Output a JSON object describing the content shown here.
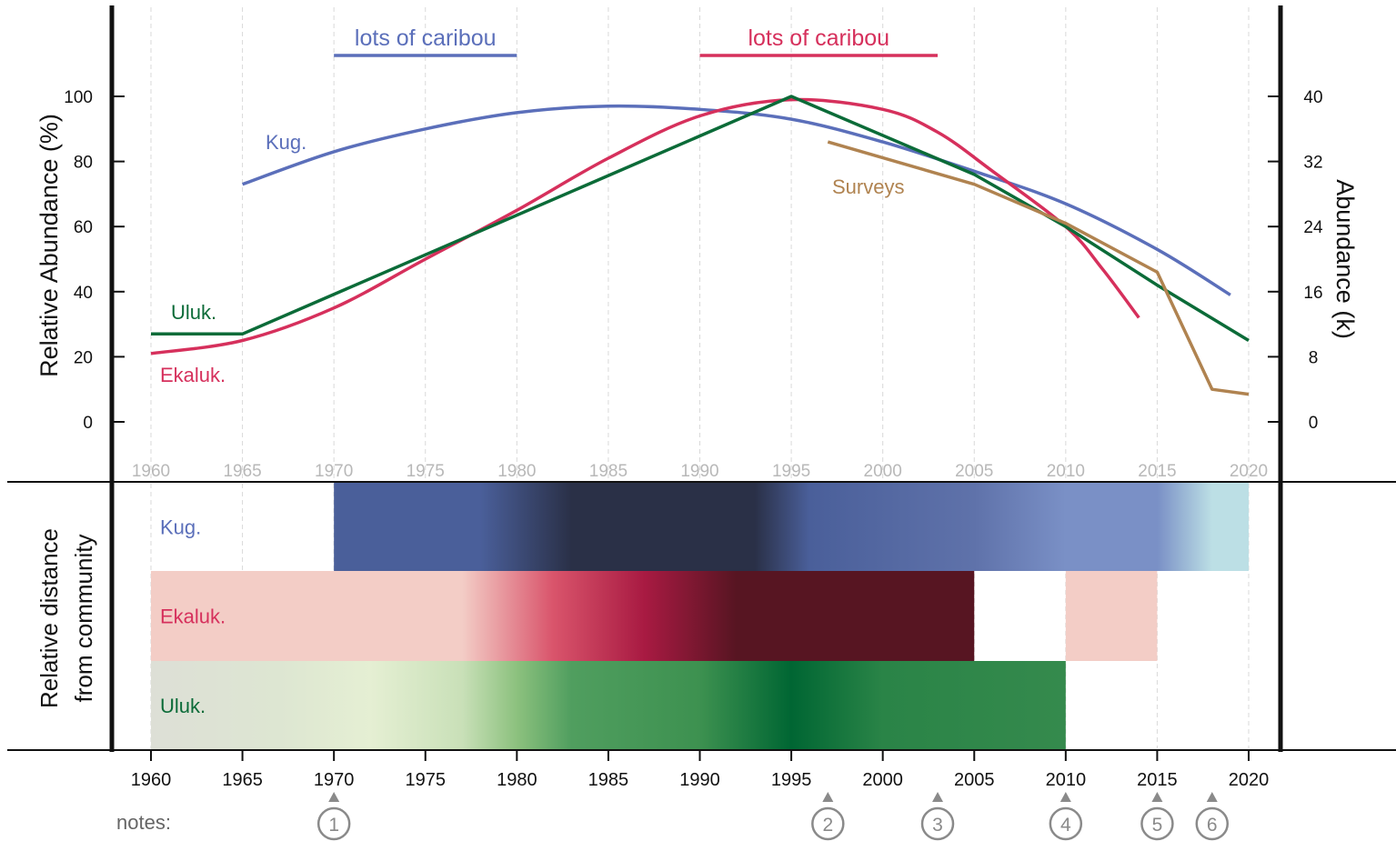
{
  "chart_data": [
    {
      "type": "line",
      "title": "",
      "ylabel": "Relative Abundance (%)",
      "ylabel_right": "Abundance (k)",
      "xlim": [
        1960,
        2020
      ],
      "ylim": [
        0,
        100
      ],
      "ylim_right": [
        0,
        40
      ],
      "x_ticks": [
        "1960",
        "1965",
        "1970",
        "1975",
        "1980",
        "1985",
        "1990",
        "1995",
        "2000",
        "2005",
        "2010",
        "2015",
        "2020"
      ],
      "y_ticks": [
        "0",
        "20",
        "40",
        "60",
        "80",
        "100"
      ],
      "y_ticks_right": [
        "0",
        "8",
        "16",
        "24",
        "32",
        "40"
      ],
      "grid": "vertical dashed",
      "series": [
        {
          "name": "Kug.",
          "color": "#5b6fba",
          "axis": "left",
          "x": [
            1965,
            1970,
            1975,
            1980,
            1985,
            1990,
            1995,
            2000,
            2005,
            2010,
            2015,
            2019
          ],
          "y": [
            73,
            83,
            90,
            95,
            97,
            96,
            93,
            86,
            77,
            67,
            53,
            39
          ]
        },
        {
          "name": "Ekaluk.",
          "color": "#d6305c",
          "axis": "left",
          "x": [
            1960,
            1965,
            1970,
            1975,
            1980,
            1985,
            1990,
            1995,
            2000,
            2003,
            2006,
            2010,
            2012,
            2014
          ],
          "y": [
            21,
            25,
            35,
            50,
            65,
            81,
            94,
            99,
            96,
            89,
            77,
            60,
            47,
            32
          ]
        },
        {
          "name": "Uluk.",
          "color": "#0b6b38",
          "axis": "left",
          "x": [
            1960,
            1965,
            1995,
            2005,
            2010,
            2015,
            2020
          ],
          "y": [
            27,
            27,
            100,
            76,
            60,
            42,
            25
          ]
        },
        {
          "name": "Surveys",
          "color": "#b08350",
          "axis": "right",
          "x": [
            1997,
            2005,
            2010,
            2015,
            2018,
            2020
          ],
          "y": [
            34.4,
            29.2,
            24.4,
            18.4,
            4,
            3.4
          ]
        }
      ],
      "annotations": [
        {
          "text": "lots of caribou",
          "color": "#5b6fba",
          "x_range": [
            1970,
            1980
          ]
        },
        {
          "text": "lots of caribou",
          "color": "#d6305c",
          "x_range": [
            1990,
            2003
          ]
        }
      ]
    },
    {
      "type": "heatmap",
      "ylabel": "Relative distance from community",
      "x_ticks": [
        "1960",
        "1965",
        "1970",
        "1975",
        "1980",
        "1985",
        "1990",
        "1995",
        "2000",
        "2005",
        "2010",
        "2015",
        "2020"
      ],
      "rows": [
        {
          "name": "Kug.",
          "label_color": "#5b6fba",
          "segments": [
            {
              "from": 1970,
              "to": 2020,
              "stops": [
                [
                  1970,
                  "#4a5f9a"
                ],
                [
                  1978,
                  "#4a5f9a"
                ],
                [
                  1983,
                  "#2a3047"
                ],
                [
                  1993,
                  "#2a3047"
                ],
                [
                  1996,
                  "#4a5f9a"
                ],
                [
                  2005,
                  "#5f72aa"
                ],
                [
                  2010,
                  "#7a90c6"
                ],
                [
                  2015,
                  "#7a90c6"
                ],
                [
                  2018,
                  "#bcdfe5"
                ],
                [
                  2020,
                  "#bcdfe5"
                ]
              ]
            }
          ]
        },
        {
          "name": "Ekaluk.",
          "label_color": "#d6305c",
          "segments": [
            {
              "from": 1960,
              "to": 2005,
              "stops": [
                [
                  1960,
                  "#f3cdc6"
                ],
                [
                  1977,
                  "#f3cdc6"
                ],
                [
                  1982,
                  "#d9546b"
                ],
                [
                  1987,
                  "#a81a42"
                ],
                [
                  1992,
                  "#571522"
                ],
                [
                  2005,
                  "#571522"
                ]
              ]
            },
            {
              "from": 2010,
              "to": 2015,
              "stops": [
                [
                  2010,
                  "#f3cdc6"
                ],
                [
                  2015,
                  "#f3cdc6"
                ]
              ]
            }
          ]
        },
        {
          "name": "Uluk.",
          "label_color": "#0b6b38",
          "segments": [
            {
              "from": 1960,
              "to": 2010,
              "stops": [
                [
                  1960,
                  "#dddfd6"
                ],
                [
                  1967,
                  "#dde6d2"
                ],
                [
                  1972,
                  "#e5efd3"
                ],
                [
                  1977,
                  "#c9e0b8"
                ],
                [
                  1980,
                  "#8cc17e"
                ],
                [
                  1983,
                  "#509e5f"
                ],
                [
                  1990,
                  "#3d9150"
                ],
                [
                  1995,
                  "#006633"
                ],
                [
                  2000,
                  "#2a8447"
                ],
                [
                  2010,
                  "#358a4d"
                ]
              ]
            }
          ]
        }
      ]
    }
  ],
  "notes": {
    "label": "notes:",
    "markers": [
      {
        "num": "1",
        "year": 1970
      },
      {
        "num": "2",
        "year": 1997
      },
      {
        "num": "3",
        "year": 2003
      },
      {
        "num": "4",
        "year": 2010
      },
      {
        "num": "5",
        "year": 2015
      },
      {
        "num": "6",
        "year": 2018
      }
    ]
  },
  "colors": {
    "axis": "#111111",
    "grid": "#d9d9d9",
    "tick_faint": "#b8b8b8",
    "marker": "#8a8a8a"
  }
}
